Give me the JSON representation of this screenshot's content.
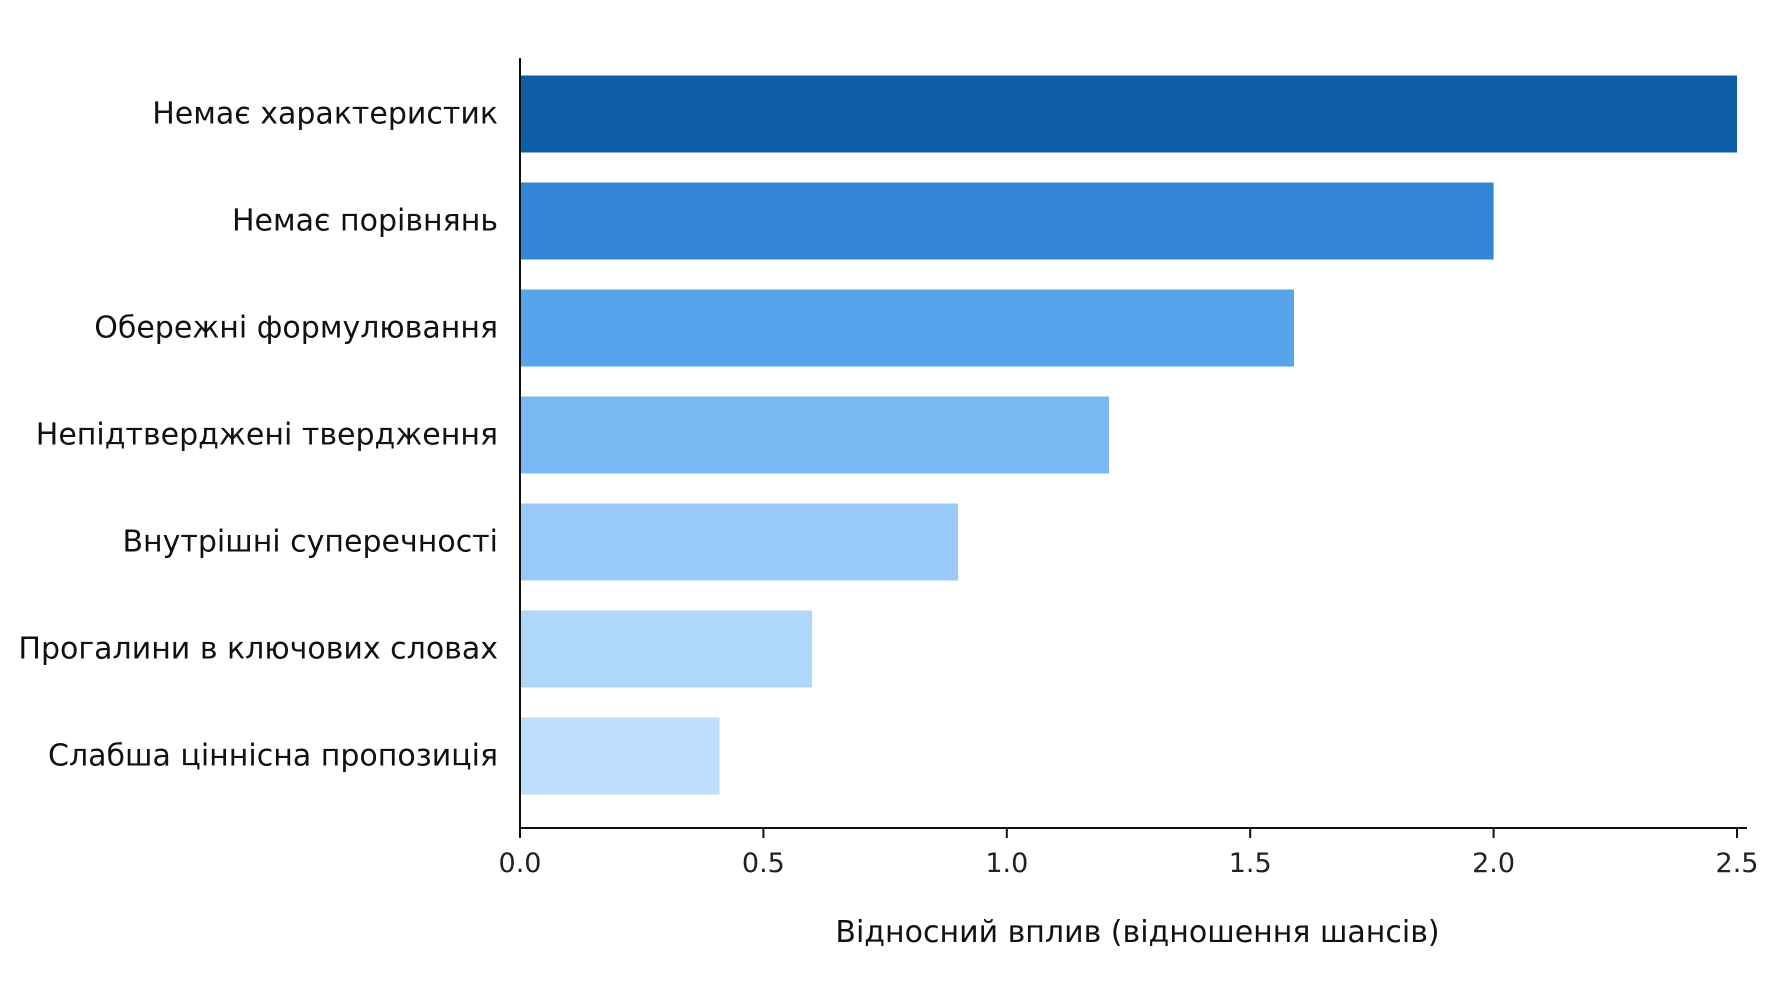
{
  "chart_data": {
    "type": "bar",
    "orientation": "horizontal",
    "categories": [
      "Немає характеристик",
      "Немає порівнянь",
      "Обережні формулювання",
      "Непідтверджені твердження",
      "Внутрішні суперечності",
      "Прогалини в ключових словах",
      "Слабша ціннісна пропозиція"
    ],
    "values": [
      2.5,
      2.0,
      1.59,
      1.21,
      0.9,
      0.6,
      0.41
    ],
    "colors": [
      "#0f5ca8",
      "#3385d6",
      "#56a4ec",
      "#7ab9f4",
      "#99caf8",
      "#afd7fa",
      "#bedffc"
    ],
    "title": "",
    "xlabel": "Відносний вплив (відношення шансів)",
    "ylabel": "",
    "xlim": [
      0,
      2.5
    ],
    "xticks": [
      0.0,
      0.5,
      1.0,
      1.5,
      2.0,
      2.5
    ],
    "xtick_labels": [
      "0.0",
      "0.5",
      "1.0",
      "1.5",
      "2.0",
      "2.5"
    ],
    "grid": false,
    "legend": "none"
  }
}
